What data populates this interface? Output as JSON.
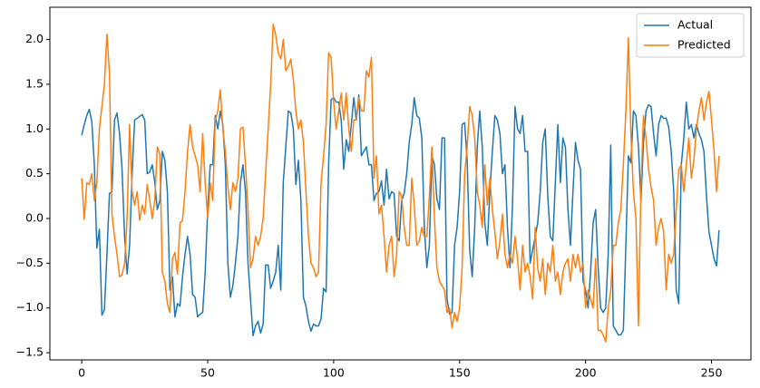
{
  "chart_data": {
    "type": "line",
    "x": [
      0,
      1,
      2,
      3,
      4,
      5,
      6,
      7,
      8,
      9,
      10,
      11,
      12,
      13,
      14,
      15,
      16,
      17,
      18,
      19,
      20,
      21,
      22,
      23,
      24,
      25,
      26,
      27,
      28,
      29,
      30,
      31,
      32,
      33,
      34,
      35,
      36,
      37,
      38,
      39,
      40,
      41,
      42,
      43,
      44,
      45,
      46,
      47,
      48,
      49,
      50,
      51,
      52,
      53,
      54,
      55,
      56,
      57,
      58,
      59,
      60,
      61,
      62,
      63,
      64,
      65,
      66,
      67,
      68,
      69,
      70,
      71,
      72,
      73,
      74,
      75,
      76,
      77,
      78,
      79,
      80,
      81,
      82,
      83,
      84,
      85,
      86,
      87,
      88,
      89,
      90,
      91,
      92,
      93,
      94,
      95,
      96,
      97,
      98,
      99,
      100,
      101,
      102,
      103,
      104,
      105,
      106,
      107,
      108,
      109,
      110,
      111,
      112,
      113,
      114,
      115,
      116,
      117,
      118,
      119,
      120,
      121,
      122,
      123,
      124,
      125,
      126,
      127,
      128,
      129,
      130,
      131,
      132,
      133,
      134,
      135,
      136,
      137,
      138,
      139,
      140,
      141,
      142,
      143,
      144,
      145,
      146,
      147,
      148,
      149,
      150,
      151,
      152,
      153,
      154,
      155,
      156,
      157,
      158,
      159,
      160,
      161,
      162,
      163,
      164,
      165,
      166,
      167,
      168,
      169,
      170,
      171,
      172,
      173,
      174,
      175,
      176,
      177,
      178,
      179,
      180,
      181,
      182,
      183,
      184,
      185,
      186,
      187,
      188,
      189,
      190,
      191,
      192,
      193,
      194,
      195,
      196,
      197,
      198,
      199,
      200,
      201,
      202,
      203,
      204,
      205,
      206,
      207,
      208,
      209,
      210,
      211,
      212,
      213,
      214,
      215,
      216,
      217,
      218,
      219,
      220,
      221,
      222,
      223,
      224,
      225,
      226,
      227,
      228,
      229,
      230,
      231,
      232,
      233,
      234,
      235,
      236,
      237,
      238,
      239,
      240,
      241,
      242,
      243,
      244,
      245,
      246,
      247,
      248,
      249,
      250,
      251,
      252,
      253
    ],
    "series": [
      {
        "name": "Actual",
        "color": "#1f77b4",
        "values": [
          0.93,
          1.05,
          1.15,
          1.22,
          1.08,
          0.6,
          -0.33,
          -0.12,
          -1.08,
          -1.02,
          -0.4,
          0.28,
          0.3,
          1.1,
          1.18,
          0.95,
          0.55,
          -0.2,
          -0.62,
          -0.3,
          0.5,
          1.1,
          1.12,
          1.14,
          1.16,
          1.1,
          0.5,
          0.52,
          0.6,
          0.4,
          0.1,
          0.2,
          0.75,
          0.65,
          0.3,
          -0.8,
          -0.65,
          -1.1,
          -0.95,
          -0.98,
          -0.65,
          -0.4,
          -0.2,
          -0.4,
          -0.85,
          -0.88,
          -1.1,
          -1.07,
          -1.05,
          -0.6,
          0.1,
          0.6,
          0.6,
          1.15,
          1.0,
          1.2,
          1.05,
          0.6,
          -0.5,
          -0.88,
          -0.75,
          -0.5,
          -0.2,
          0.4,
          0.6,
          0.3,
          -0.5,
          -0.9,
          -1.31,
          -1.2,
          -1.15,
          -1.28,
          -1.18,
          -0.52,
          -0.52,
          -0.78,
          -0.7,
          -0.6,
          -0.3,
          -0.8,
          0.4,
          0.8,
          1.2,
          1.18,
          1.0,
          0.38,
          0.65,
          0.2,
          -0.88,
          -0.98,
          -1.15,
          -1.26,
          -1.18,
          -1.2,
          -1.2,
          -1.12,
          -0.78,
          -0.82,
          0.6,
          1.33,
          1.35,
          1.3,
          1.3,
          1.1,
          0.55,
          0.88,
          0.75,
          1.05,
          1.35,
          1.1,
          1.38,
          0.7,
          0.75,
          0.8,
          0.6,
          0.6,
          0.2,
          0.28,
          0.3,
          0.42,
          0.15,
          0.55,
          0.22,
          0.3,
          0.28,
          -0.2,
          -0.25,
          0.2,
          0.28,
          0.5,
          0.85,
          1.05,
          1.35,
          1.15,
          1.12,
          0.9,
          -0.1,
          -0.55,
          -0.3,
          0.7,
          0.6,
          0.22,
          0.1,
          0.9,
          0.9,
          -0.9,
          -1.07,
          -1.05,
          -0.3,
          -0.1,
          0.3,
          1.05,
          1.07,
          0.65,
          -0.35,
          -0.65,
          -0.1,
          0.8,
          1.2,
          0.8,
          -0.05,
          -0.3,
          0.3,
          0.75,
          1.15,
          1.1,
          0.95,
          0.5,
          0.6,
          -0.1,
          -0.55,
          0.15,
          1.25,
          1.0,
          0.95,
          1.15,
          0.75,
          0.75,
          -0.5,
          -0.35,
          -0.2,
          -0.05,
          0.3,
          0.85,
          1.0,
          0.25,
          -0.2,
          -0.25,
          0.4,
          1.05,
          0.4,
          0.9,
          0.8,
          0.1,
          -0.3,
          0.3,
          0.85,
          0.65,
          0.55,
          -0.7,
          -0.8,
          -1.0,
          -0.6,
          -0.05,
          0.1,
          -0.55,
          -1.0,
          -1.05,
          -1.0,
          -0.4,
          0.82,
          -1.2,
          -1.25,
          -1.3,
          -1.3,
          -1.25,
          -0.3,
          0.7,
          0.62,
          1.2,
          1.15,
          0.8,
          0.2,
          0.85,
          1.2,
          1.27,
          1.25,
          0.95,
          0.7,
          1.05,
          1.15,
          1.12,
          1.12,
          1.02,
          0.75,
          0.3,
          -0.8,
          -0.95,
          0.6,
          0.9,
          1.3,
          1.0,
          1.05,
          0.9,
          1.05,
          0.95,
          0.88,
          0.75,
          0.25,
          -0.15,
          -0.3,
          -0.45,
          -0.53,
          -0.13
        ]
      },
      {
        "name": "Predicted",
        "color": "#ff7f0e",
        "values": [
          0.45,
          -0.01,
          0.4,
          0.38,
          0.5,
          0.2,
          0.4,
          1.0,
          1.25,
          1.5,
          2.06,
          1.62,
          0.05,
          -0.2,
          -0.4,
          -0.65,
          -0.63,
          -0.5,
          0.0,
          1.05,
          0.3,
          0.15,
          0.3,
          -0.02,
          0.15,
          0.05,
          0.38,
          0.2,
          0.0,
          0.2,
          0.8,
          0.72,
          -0.6,
          -0.7,
          -0.95,
          -1.05,
          -0.45,
          -0.38,
          -0.62,
          -0.05,
          -0.02,
          0.3,
          0.75,
          1.05,
          0.8,
          0.7,
          0.6,
          0.3,
          0.95,
          0.4,
          0.0,
          0.4,
          0.2,
          1.1,
          1.2,
          1.44,
          1.0,
          0.75,
          0.35,
          0.1,
          0.4,
          0.3,
          0.45,
          1.0,
          1.02,
          0.6,
          0.1,
          -0.55,
          -0.45,
          -0.2,
          -0.3,
          -0.2,
          0.0,
          0.5,
          1.0,
          1.5,
          2.17,
          2.05,
          1.85,
          1.78,
          2.0,
          1.65,
          1.7,
          1.78,
          1.55,
          1.2,
          1.0,
          1.1,
          0.85,
          0.3,
          -0.2,
          -0.5,
          -0.55,
          -0.65,
          -0.6,
          0.4,
          0.7,
          1.05,
          1.85,
          1.8,
          1.3,
          1.0,
          1.2,
          1.4,
          1.1,
          1.4,
          1.0,
          0.75,
          1.1,
          1.1,
          1.35,
          1.2,
          1.2,
          1.65,
          1.58,
          1.8,
          0.45,
          0.7,
          0.05,
          0.15,
          -0.2,
          -0.6,
          -0.3,
          -0.2,
          -0.65,
          -0.4,
          0.3,
          0.25,
          -0.1,
          -0.3,
          -0.3,
          0.45,
          0.15,
          -0.3,
          -0.25,
          -0.1,
          -0.2,
          -0.2,
          0.25,
          0.8,
          0.0,
          -0.55,
          -0.7,
          -0.75,
          -0.8,
          -1.05,
          -1.0,
          -1.22,
          -1.05,
          -1.15,
          -1.0,
          -0.55,
          0.5,
          0.8,
          1.25,
          1.15,
          0.9,
          0.3,
          0.15,
          -0.1,
          0.6,
          0.15,
          0.45,
          0.1,
          -0.15,
          -0.45,
          -0.25,
          0.05,
          -0.4,
          -0.55,
          -0.4,
          -0.5,
          -0.2,
          -0.45,
          -0.8,
          -0.3,
          -0.6,
          -0.5,
          -0.65,
          -0.9,
          -0.1,
          -0.55,
          -0.7,
          -0.45,
          -0.85,
          -0.5,
          -0.6,
          -0.3,
          -0.7,
          -0.6,
          -0.85,
          -0.6,
          -0.5,
          -0.45,
          -0.7,
          -0.4,
          -0.55,
          -0.4,
          -0.6,
          -0.5,
          -1.0,
          -0.8,
          -0.9,
          -1.0,
          -0.45,
          -1.25,
          -1.25,
          -1.3,
          -1.38,
          -1.0,
          -0.8,
          -0.3,
          -0.3,
          -0.05,
          0.1,
          0.6,
          1.2,
          2.02,
          0.95,
          0.3,
          0.0,
          -1.2,
          0.35,
          1.15,
          0.9,
          0.55,
          0.35,
          0.2,
          -0.3,
          -0.1,
          0.0,
          -0.15,
          -0.8,
          -0.4,
          -0.5,
          -0.4,
          0.1,
          0.55,
          0.6,
          0.3,
          0.6,
          0.9,
          0.45,
          0.65,
          1.0,
          1.2,
          1.35,
          1.1,
          1.3,
          1.42,
          1.1,
          0.75,
          0.3,
          0.7
        ]
      }
    ],
    "xlim": [
      -12.65,
      265.65
    ],
    "xticks": [
      0,
      50,
      100,
      150,
      200,
      250
    ],
    "ylim": [
      -1.58,
      2.36
    ],
    "yticks": [
      {
        "value": -1.5,
        "label": "−1.5"
      },
      {
        "value": -1.0,
        "label": "−1.0"
      },
      {
        "value": -0.5,
        "label": "−0.5"
      },
      {
        "value": 0.0,
        "label": "0.0"
      },
      {
        "value": 0.5,
        "label": "0.5"
      },
      {
        "value": 1.0,
        "label": "1.0"
      },
      {
        "value": 1.5,
        "label": "1.5"
      },
      {
        "value": 2.0,
        "label": "2.0"
      }
    ],
    "legend": "upper right"
  }
}
